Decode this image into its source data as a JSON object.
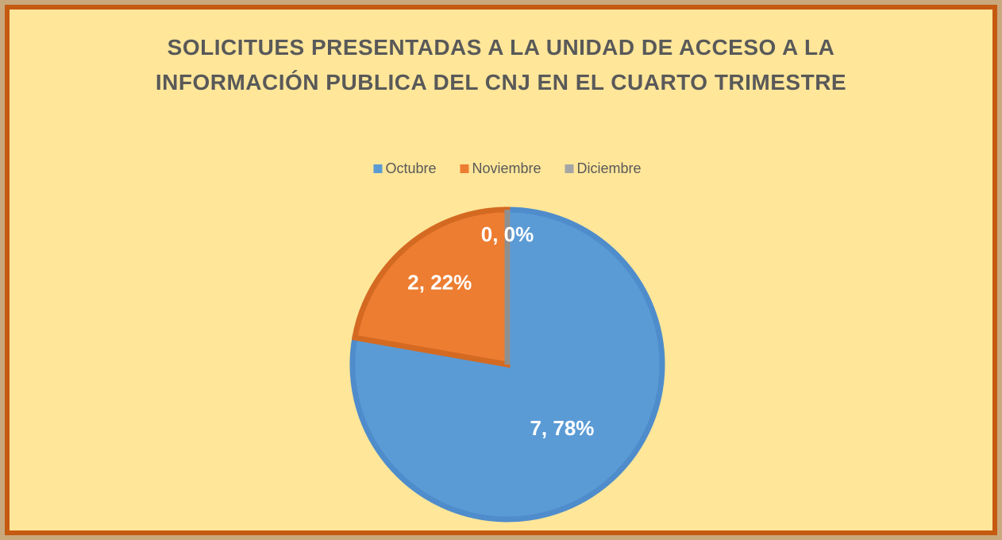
{
  "chart_data": {
    "type": "pie",
    "title": "SOLICITUES PRESENTADAS A LA UNIDAD DE ACCESO A LA INFORMACIÓN PUBLICA DEL CNJ EN EL CUARTO TRIMESTRE",
    "categories": [
      "Octubre",
      "Noviembre",
      "Diciembre"
    ],
    "values": [
      7,
      2,
      0
    ],
    "value_labels": [
      "7, 78%",
      "2, 22%",
      "0, 0%"
    ],
    "colors": [
      "#5b9bd5",
      "#ed7d31",
      "#a5a5a5"
    ],
    "edge_colors": [
      "#4f8ccb",
      "#d46a22",
      "#8f8f8f"
    ],
    "legend": "top"
  }
}
